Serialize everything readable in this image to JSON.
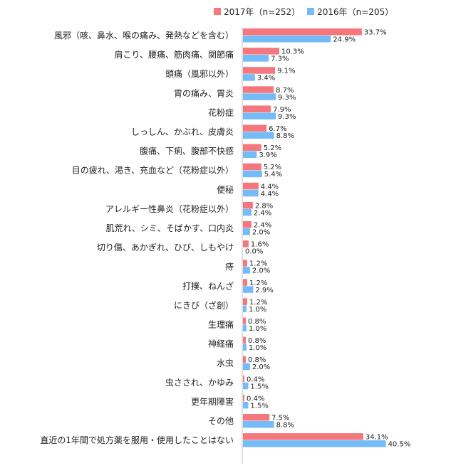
{
  "chart_data": {
    "type": "bar",
    "orientation": "horizontal",
    "title": "",
    "xlabel": "",
    "ylabel": "",
    "xlim": [
      0,
      42
    ],
    "grid": false,
    "legend_position": "top",
    "value_suffix": "%",
    "categories": [
      "風邪（咳、鼻水、喉の痛み、発熱などを含む）",
      "肩こり、腰痛、筋肉痛、関節痛",
      "頭痛（風邪以外）",
      "胃の痛み、胃炎",
      "花粉症",
      "しっしん、かぶれ、皮膚炎",
      "腹痛、下痢、腹部不快感",
      "目の疲れ、渇き、充血など（花粉症以外）",
      "便秘",
      "アレルギー性鼻炎（花粉症以外）",
      "肌荒れ、シミ、そばかす、口内炎",
      "切り傷、あかぎれ、ひび、しもやけ",
      "痔",
      "打撲、ねんざ",
      "にきび（ざ創）",
      "生理痛",
      "神経痛",
      "水虫",
      "虫さされ、かゆみ",
      "更年期障害",
      "その他",
      "直近の1年間で処方薬を服用・使用したことはない"
    ],
    "series": [
      {
        "name": "2017年（n=252）",
        "color": "#f4777d",
        "values": [
          33.7,
          10.3,
          9.1,
          8.7,
          7.9,
          6.7,
          5.2,
          5.2,
          4.4,
          2.8,
          2.4,
          1.6,
          1.2,
          1.2,
          1.2,
          0.8,
          0.8,
          0.8,
          0.4,
          0.4,
          7.5,
          34.1
        ]
      },
      {
        "name": "2016年（n=205）",
        "color": "#74bbf7",
        "values": [
          24.9,
          7.3,
          3.4,
          9.3,
          9.3,
          8.8,
          3.9,
          5.4,
          4.4,
          2.4,
          2.0,
          0.0,
          2.0,
          2.9,
          1.0,
          1.0,
          1.0,
          2.0,
          1.5,
          1.5,
          8.8,
          40.5
        ]
      }
    ]
  }
}
